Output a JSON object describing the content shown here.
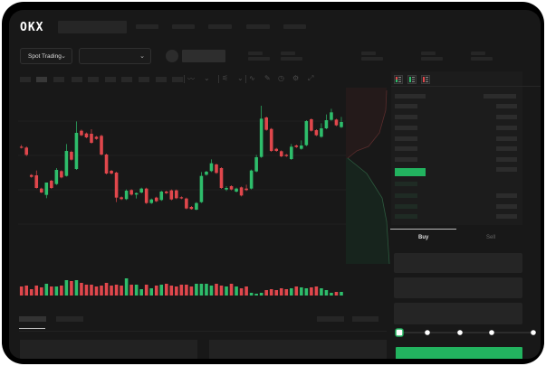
{
  "header": {
    "logo": "OKX"
  },
  "market": {
    "mode_label": "Spot Trading"
  },
  "order_form": {
    "tabs": [
      {
        "label": "Buy",
        "active": true
      },
      {
        "label": "Sell",
        "active": false
      }
    ],
    "slider_percent": 0
  },
  "colors": {
    "up": "#2ebd6b",
    "down": "#e0474c",
    "accent": "#22b35f",
    "background": "#181818"
  },
  "candles": [
    [
      239,
      236,
      245,
      233
    ],
    [
      236,
      212,
      240,
      208
    ],
    [
      145,
      139,
      148,
      136
    ],
    [
      144,
      102,
      160,
      100
    ],
    [
      100,
      87,
      103,
      85
    ],
    [
      79,
      120,
      82,
      68
    ],
    [
      126,
      102,
      129,
      99
    ],
    [
      115,
      162,
      168,
      112
    ],
    [
      158,
      137,
      161,
      134
    ],
    [
      142,
      225,
      248,
      140
    ],
    [
      222,
      196,
      226,
      193
    ],
    [
      165,
      285,
      323,
      162
    ],
    [
      292,
      277,
      296,
      274
    ],
    [
      283,
      270,
      286,
      267
    ],
    [
      282,
      252,
      297,
      249
    ],
    [
      272,
      265,
      275,
      262
    ],
    [
      275,
      213,
      279,
      210
    ],
    [
      213,
      150,
      216,
      147
    ],
    [
      159,
      150,
      162,
      147
    ],
    [
      153,
      70,
      156,
      55
    ],
    [
      71,
      65,
      74,
      62
    ],
    [
      65,
      93,
      97,
      62
    ],
    [
      95,
      80,
      98,
      77
    ],
    [
      80,
      85,
      87,
      67
    ],
    [
      87,
      100,
      103,
      84
    ],
    [
      100,
      52,
      103,
      49
    ],
    [
      52,
      64,
      67,
      49
    ],
    [
      70,
      58,
      73,
      55
    ],
    [
      62,
      90,
      93,
      59
    ],
    [
      90,
      85,
      93,
      82
    ],
    [
      94,
      64,
      97,
      61
    ],
    [
      94,
      68,
      97,
      65
    ],
    [
      71,
      68,
      74,
      65
    ],
    [
      67,
      34,
      70,
      31
    ],
    [
      39,
      32,
      42,
      30
    ],
    [
      30,
      52,
      55,
      28
    ],
    [
      55,
      142,
      155,
      52
    ],
    [
      146,
      156,
      159,
      143
    ],
    [
      158,
      184,
      197,
      155
    ],
    [
      180,
      152,
      183,
      149
    ],
    [
      168,
      102,
      171,
      99
    ],
    [
      97,
      102,
      108,
      92
    ],
    [
      108,
      97,
      111,
      94
    ],
    [
      90,
      100,
      103,
      87
    ],
    [
      104,
      77,
      107,
      74
    ],
    [
      100,
      95,
      113,
      92
    ],
    [
      100,
      160,
      163,
      97
    ],
    [
      157,
      204,
      212,
      154
    ],
    [
      205,
      332,
      375,
      202
    ],
    [
      336,
      295,
      339,
      292
    ],
    [
      298,
      225,
      301,
      222
    ],
    [
      232,
      225,
      235,
      222
    ],
    [
      224,
      207,
      227,
      204
    ],
    [
      212,
      208,
      215,
      205
    ],
    [
      198,
      239,
      248,
      195
    ],
    [
      243,
      238,
      246,
      235
    ],
    [
      232,
      243,
      260,
      229
    ],
    [
      244,
      324,
      327,
      241
    ],
    [
      330,
      292,
      333,
      289
    ],
    [
      294,
      277,
      297,
      274
    ],
    [
      272,
      300,
      317,
      269
    ],
    [
      300,
      327,
      346,
      297
    ],
    [
      328,
      353,
      365,
      325
    ],
    [
      329,
      310,
      332,
      307
    ],
    [
      304,
      321,
      338,
      301
    ]
  ],
  "volumes": [
    10,
    11,
    7,
    11,
    9,
    13,
    10,
    10,
    11,
    17,
    16,
    17,
    14,
    12,
    12,
    10,
    11,
    14,
    11,
    12,
    11,
    19,
    12,
    12,
    7,
    12,
    8,
    11,
    12,
    13,
    11,
    10,
    12,
    12,
    10,
    13,
    13,
    13,
    11,
    13,
    11,
    10,
    13,
    10,
    8,
    10,
    3,
    2,
    3,
    6,
    7,
    6,
    8,
    7,
    8,
    10,
    9,
    8,
    9,
    10,
    8,
    6,
    3,
    4,
    4
  ]
}
